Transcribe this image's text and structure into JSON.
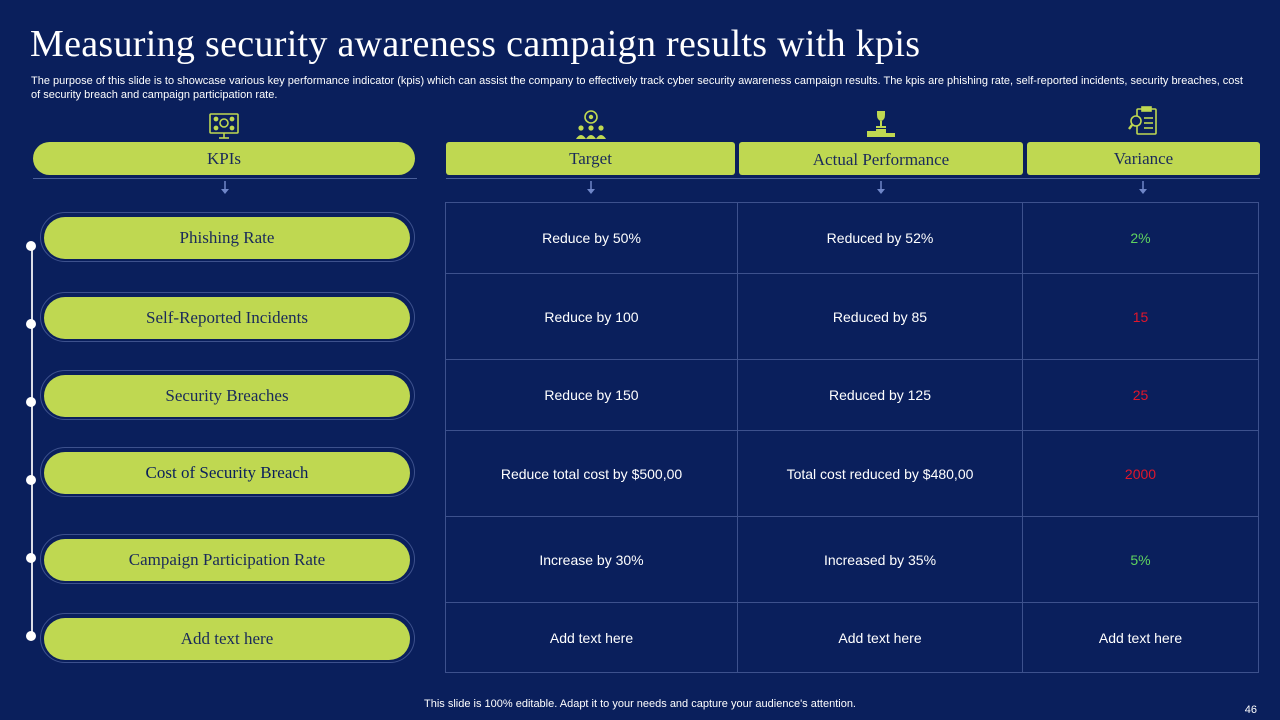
{
  "title": "Measuring security awareness campaign results with kpis",
  "subtitle": "The purpose of this slide is to showcase various key performance indicator (kpis) which can assist the company to effectively track cyber security awareness campaign results. The kpis are phishing rate, self-reported incidents, security breaches, cost of security breach and campaign participation rate.",
  "headers": {
    "kpis": "KPIs",
    "target": "Target",
    "actual": "Actual Performance",
    "variance": "Variance"
  },
  "rows": [
    {
      "kpi": "Phishing Rate",
      "target": "Reduce by 50%",
      "actual": "Reduced by 52%",
      "variance": "2%",
      "variance_color": "#5fd35f"
    },
    {
      "kpi": "Self-Reported Incidents",
      "target": "Reduce by 100",
      "actual": "Reduced by 85",
      "variance": "15",
      "variance_color": "#e0162b"
    },
    {
      "kpi": "Security Breaches",
      "target": "Reduce by 150",
      "actual": "Reduced by 125",
      "variance": "25",
      "variance_color": "#e0162b"
    },
    {
      "kpi": "Cost of Security Breach",
      "target": "Reduce total cost by $500,00",
      "actual": "Total cost reduced by $480,00",
      "variance": "2000",
      "variance_color": "#e0162b"
    },
    {
      "kpi": "Campaign Participation Rate",
      "target": "Increase by 30%",
      "actual": "Increased by 35%",
      "variance": "5%",
      "variance_color": "#5fd35f"
    },
    {
      "kpi": "Add text here",
      "target": "Add text here",
      "actual": "Add text here",
      "variance": "Add text here",
      "variance_color": "#ffffff"
    }
  ],
  "colors": {
    "background": "#0a1f5c",
    "accent": "#bfd851",
    "positive": "#5fd35f",
    "negative": "#e0162b"
  },
  "icons": {
    "kpis": "monitor-network-icon",
    "target": "target-team-icon",
    "actual": "trophy-podium-icon",
    "variance": "document-search-icon"
  },
  "footer": "This slide is 100% editable. Adapt it to your needs and capture your audience's attention.",
  "page_number": "46"
}
